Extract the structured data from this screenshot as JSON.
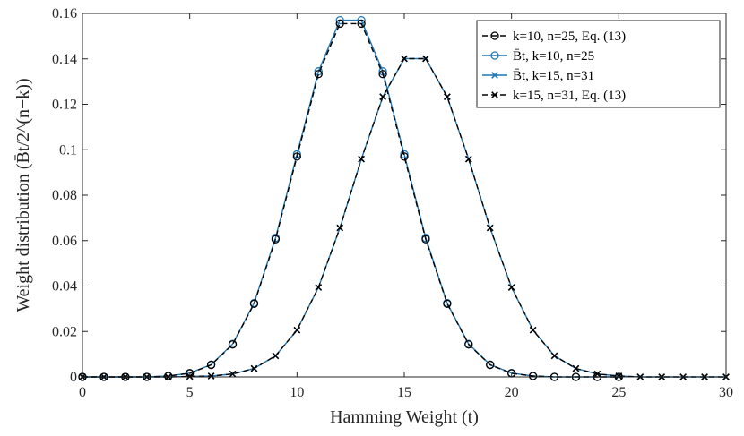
{
  "chart_data": {
    "type": "line",
    "title": "",
    "xlabel": "Hamming Weight (t)",
    "ylabel": "Weight distribution (B̄t/2^(n−k))",
    "xlim": [
      0,
      30
    ],
    "ylim": [
      0,
      0.16
    ],
    "xticks": [
      0,
      5,
      10,
      15,
      20,
      25,
      30
    ],
    "yticks": [
      0,
      0.02,
      0.04,
      0.06,
      0.08,
      0.1,
      0.12,
      0.14,
      0.16
    ],
    "xtick_labels": [
      "0",
      "5",
      "10",
      "15",
      "20",
      "25",
      "30"
    ],
    "ytick_labels": [
      "0",
      "0.02",
      "0.04",
      "0.06",
      "0.08",
      "0.1",
      "0.12",
      "0.14",
      "0.16"
    ],
    "legend_position": "top-right",
    "series": [
      {
        "name": "k=10, n=25, Eq. (13)",
        "color": "#000000",
        "style": "dashed",
        "marker": "circle",
        "x": [
          0,
          1,
          2,
          3,
          4,
          5,
          6,
          7,
          8,
          9,
          10,
          11,
          12,
          13,
          14,
          15,
          16,
          17,
          18,
          19,
          20,
          21,
          22,
          23,
          24,
          25
        ],
        "y": [
          0,
          0,
          0,
          0,
          0.0004,
          0.0016,
          0.0053,
          0.0143,
          0.0322,
          0.0606,
          0.097,
          0.1333,
          0.1555,
          0.1555,
          0.1333,
          0.097,
          0.0606,
          0.0322,
          0.0143,
          0.0053,
          0.0016,
          0.0004,
          0,
          0,
          0,
          0
        ]
      },
      {
        "name": "B̄t, k=10, n=25",
        "color": "#1f77b4",
        "style": "solid",
        "marker": "circle",
        "x": [
          0,
          1,
          2,
          3,
          4,
          5,
          6,
          7,
          8,
          9,
          10,
          11,
          12,
          13,
          14,
          15,
          16,
          17,
          18,
          19,
          20,
          21,
          22,
          23,
          24,
          25
        ],
        "y": [
          0,
          0,
          0,
          0,
          0.0004,
          0.0017,
          0.0054,
          0.0145,
          0.0325,
          0.0612,
          0.098,
          0.1345,
          0.157,
          0.157,
          0.1345,
          0.098,
          0.0612,
          0.0325,
          0.0145,
          0.0054,
          0.0017,
          0.0004,
          0,
          0,
          0,
          0
        ]
      },
      {
        "name": "B̄t, k=15, n=31",
        "color": "#1f77b4",
        "style": "solid",
        "marker": "x",
        "x": [
          0,
          1,
          2,
          3,
          4,
          5,
          6,
          7,
          8,
          9,
          10,
          11,
          12,
          13,
          14,
          15,
          16,
          17,
          18,
          19,
          20,
          21,
          22,
          23,
          24,
          25,
          26,
          27,
          28,
          29,
          30
        ],
        "y": [
          0,
          0,
          0,
          0,
          0,
          0.0002,
          0.0004,
          0.0013,
          0.0037,
          0.0093,
          0.0206,
          0.0394,
          0.0656,
          0.0959,
          0.1233,
          0.1401,
          0.1401,
          0.1233,
          0.0959,
          0.0656,
          0.0394,
          0.0206,
          0.0093,
          0.0037,
          0.0013,
          0.0004,
          0,
          0,
          0,
          0,
          0
        ]
      },
      {
        "name": "k=15, n=31, Eq. (13)",
        "color": "#000000",
        "style": "dashed",
        "marker": "x",
        "x": [
          0,
          1,
          2,
          3,
          4,
          5,
          6,
          7,
          8,
          9,
          10,
          11,
          12,
          13,
          14,
          15,
          16,
          17,
          18,
          19,
          20,
          21,
          22,
          23,
          24,
          25,
          26,
          27,
          28,
          29,
          30
        ],
        "y": [
          0,
          0,
          0,
          0,
          0,
          0.0002,
          0.0004,
          0.0013,
          0.0037,
          0.0093,
          0.0206,
          0.0394,
          0.0656,
          0.0959,
          0.1233,
          0.1401,
          0.1401,
          0.1233,
          0.0959,
          0.0656,
          0.0394,
          0.0206,
          0.0093,
          0.0037,
          0.0013,
          0.0004,
          0,
          0,
          0,
          0,
          0
        ]
      }
    ]
  }
}
